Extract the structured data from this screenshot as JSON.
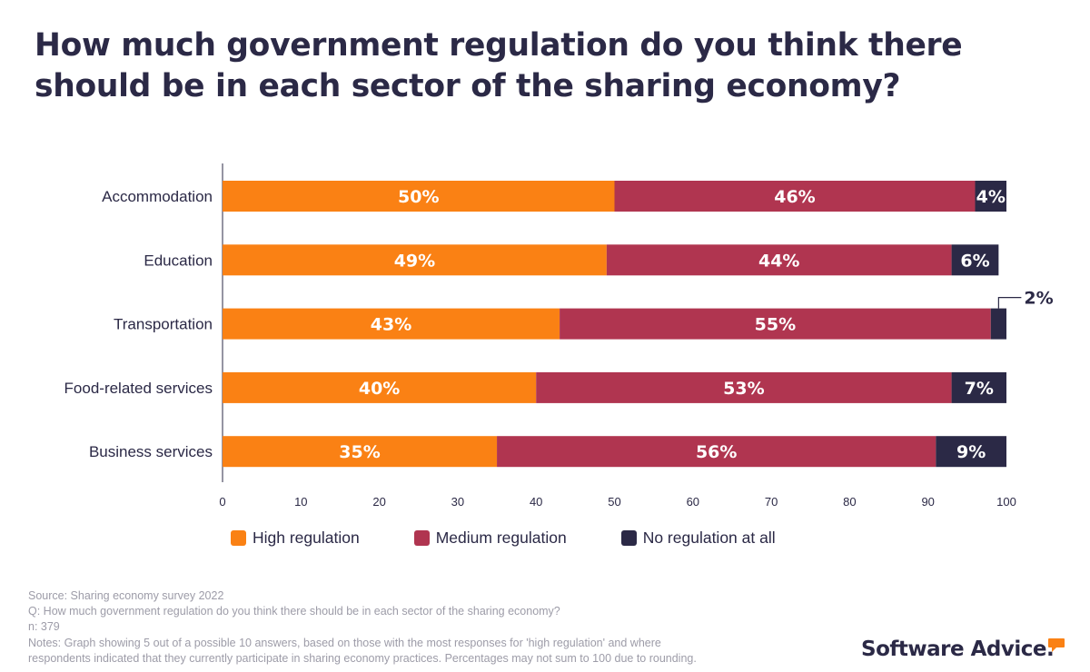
{
  "title": "How much government regulation do you think there should be in each sector of the sharing economy?",
  "chart_data": {
    "type": "bar",
    "orientation": "horizontal",
    "stacked": true,
    "categories": [
      "Accommodation",
      "Education",
      "Transportation",
      "Food-related services",
      "Business services"
    ],
    "series": [
      {
        "name": "High regulation",
        "color": "#fa8114",
        "values": [
          50,
          49,
          43,
          40,
          35
        ],
        "labels": [
          "50%",
          "49%",
          "43%",
          "40%",
          "35%"
        ]
      },
      {
        "name": "Medium regulation",
        "color": "#b03550",
        "values": [
          46,
          44,
          55,
          53,
          56
        ],
        "labels": [
          "46%",
          "44%",
          "55%",
          "53%",
          "56%"
        ]
      },
      {
        "name": "No regulation at all",
        "color": "#2b2946",
        "values": [
          4,
          6,
          2,
          7,
          9
        ],
        "labels": [
          "4%",
          "6%",
          "2%",
          "7%",
          "9%"
        ]
      }
    ],
    "xlim": [
      0,
      100
    ],
    "xticks": [
      0,
      10,
      20,
      30,
      40,
      50,
      60,
      70,
      80,
      90,
      100
    ],
    "xlabel": "",
    "ylabel": "",
    "grid": false,
    "legend_position": "bottom"
  },
  "notes": {
    "source": "Source: Sharing economy survey 2022",
    "question": "Q: How much government regulation do you think there should be in each sector of the sharing economy?",
    "n": "n: 379",
    "notes_line1": "Notes: Graph showing 5 out of a possible 10 answers, based on those with the most responses for 'high regulation' and where",
    "notes_line2": "respondents indicated that they currently participate in sharing economy practices. Percentages may not sum to 100 due to rounding."
  },
  "brand": {
    "name": "Software Advice.",
    "icon": "speech-bubble-icon",
    "accent": "#fa8114"
  }
}
